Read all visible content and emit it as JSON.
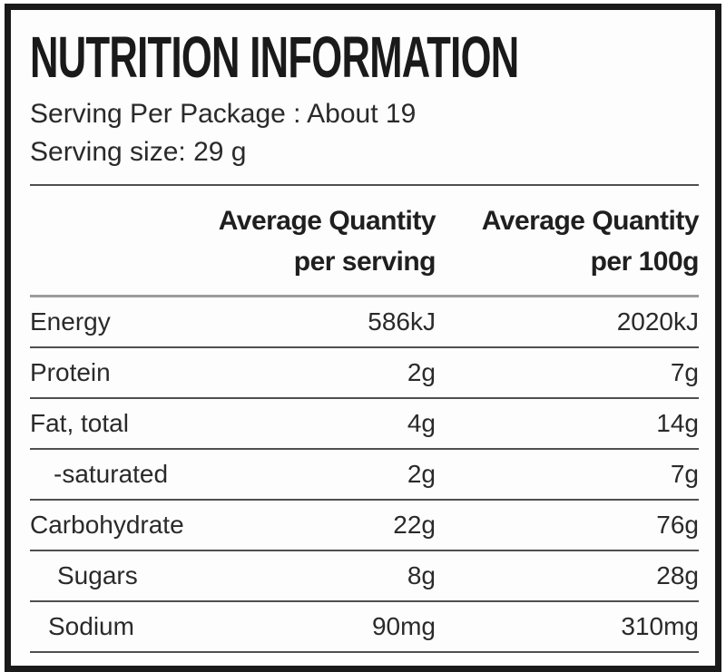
{
  "label": {
    "title": "NUTRITION INFORMATION",
    "serving_per_package": "Serving Per Package : About 19",
    "serving_size": "Serving size: 29 g",
    "columns": [
      {
        "line1": "Average Quantity",
        "line2": "per serving"
      },
      {
        "line1": "Average Quantity",
        "line2": "per 100g"
      }
    ],
    "rows": [
      {
        "nutrient": "Energy",
        "per_serving": "586kJ",
        "per_100g": "2020kJ"
      },
      {
        "nutrient": "Protein",
        "per_serving": "2g",
        "per_100g": "7g"
      },
      {
        "nutrient": "Fat, total",
        "per_serving": "4g",
        "per_100g": "14g"
      },
      {
        "nutrient": "-saturated",
        "per_serving": "2g",
        "per_100g": "7g"
      },
      {
        "nutrient": "Carbohydrate",
        "per_serving": "22g",
        "per_100g": "76g"
      },
      {
        "nutrient": "Sugars",
        "per_serving": "8g",
        "per_100g": "28g"
      },
      {
        "nutrient": "Sodium",
        "per_serving": "90mg",
        "per_100g": "310mg"
      }
    ],
    "colors": {
      "border": "#1a1a1a",
      "text": "#222222",
      "row_divider": "#4f4f4f",
      "header_divider": "#9c9c9c",
      "background": "#fdfdfd"
    }
  }
}
